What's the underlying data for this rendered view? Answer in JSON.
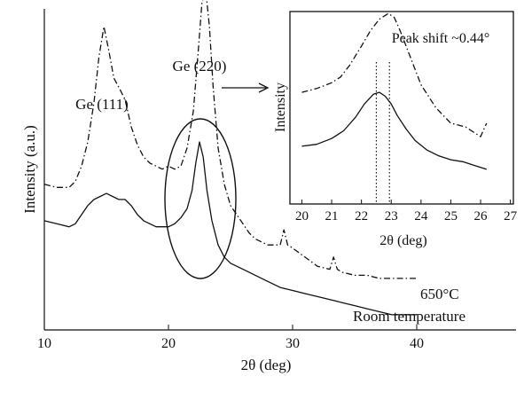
{
  "chart_data": [
    {
      "id": "main",
      "type": "line",
      "title": "",
      "xlabel": "2θ (deg)",
      "ylabel": "Intensity (a.u.)",
      "xlim": [
        10,
        48
      ],
      "ticks_x": [
        10,
        20,
        30,
        40
      ],
      "y_tick_labels": false,
      "series": [
        {
          "name": "650°C",
          "style": "dashdot",
          "x": [
            10,
            11,
            12,
            12.5,
            13,
            13.5,
            14,
            14.4,
            14.8,
            15.2,
            15.6,
            16,
            16.5,
            17,
            17.5,
            18,
            18.5,
            19,
            19.5,
            20,
            20.5,
            21,
            21.5,
            22,
            22.4,
            22.7,
            23,
            23.3,
            23.6,
            24,
            24.5,
            25,
            25.5,
            26,
            26.5,
            27,
            27.5,
            28,
            28.5,
            29,
            29.3,
            29.6,
            30,
            31,
            32,
            33,
            33.3,
            33.6,
            34,
            35,
            36,
            37,
            38,
            39,
            40
          ],
          "y": [
            0.48,
            0.47,
            0.47,
            0.49,
            0.54,
            0.62,
            0.75,
            0.9,
            1.0,
            0.92,
            0.83,
            0.8,
            0.76,
            0.67,
            0.61,
            0.57,
            0.55,
            0.54,
            0.53,
            0.54,
            0.53,
            0.54,
            0.6,
            0.72,
            0.92,
            1.08,
            1.12,
            1.0,
            0.8,
            0.6,
            0.48,
            0.41,
            0.38,
            0.35,
            0.32,
            0.3,
            0.29,
            0.28,
            0.28,
            0.28,
            0.33,
            0.28,
            0.27,
            0.24,
            0.21,
            0.2,
            0.24,
            0.2,
            0.19,
            0.18,
            0.18,
            0.17,
            0.17,
            0.17,
            0.17
          ]
        },
        {
          "name": "Room temperature",
          "style": "solid",
          "x": [
            10,
            11,
            12,
            12.5,
            13,
            13.5,
            14,
            14.5,
            15,
            15.5,
            16,
            16.5,
            17,
            17.5,
            18,
            18.5,
            19,
            19.5,
            20,
            20.5,
            21,
            21.5,
            21.9,
            22.2,
            22.5,
            22.8,
            23.1,
            23.5,
            24,
            24.5,
            25,
            26,
            27,
            28,
            29,
            30,
            31,
            32,
            33,
            34,
            35,
            36,
            37,
            38,
            39,
            40
          ],
          "y": [
            0.36,
            0.35,
            0.34,
            0.35,
            0.38,
            0.41,
            0.43,
            0.44,
            0.45,
            0.44,
            0.43,
            0.43,
            0.41,
            0.38,
            0.36,
            0.35,
            0.34,
            0.34,
            0.34,
            0.35,
            0.37,
            0.4,
            0.46,
            0.55,
            0.62,
            0.57,
            0.46,
            0.36,
            0.28,
            0.24,
            0.22,
            0.2,
            0.18,
            0.16,
            0.14,
            0.13,
            0.12,
            0.11,
            0.1,
            0.09,
            0.08,
            0.07,
            0.06,
            0.05,
            0.05,
            0.05
          ]
        }
      ],
      "annotations": [
        {
          "text": "Ge (111)",
          "x": 15
        },
        {
          "text": "Ge (220)",
          "x": 22.7
        }
      ]
    },
    {
      "id": "inset",
      "type": "line",
      "title": "Peak shift ~0.44°",
      "xlabel": "2θ (deg)",
      "ylabel": "Intensity",
      "xlim": [
        19.6,
        27.1
      ],
      "ticks_x": [
        20,
        21,
        22,
        23,
        24,
        25,
        26,
        27
      ],
      "y_tick_labels": false,
      "markers_x": [
        22.5,
        22.94
      ],
      "series": [
        {
          "name": "650°C",
          "style": "dashdot",
          "x": [
            20,
            20.5,
            21,
            21.3,
            21.6,
            22,
            22.3,
            22.6,
            22.9,
            23.1,
            23.3,
            23.6,
            24,
            24.5,
            25,
            25.5,
            26,
            26.2
          ],
          "y": [
            0.58,
            0.6,
            0.63,
            0.66,
            0.72,
            0.82,
            0.9,
            0.96,
            0.99,
            0.97,
            0.9,
            0.78,
            0.62,
            0.5,
            0.42,
            0.4,
            0.35,
            0.42
          ]
        },
        {
          "name": "Room temperature",
          "style": "solid",
          "x": [
            20,
            20.5,
            21,
            21.4,
            21.8,
            22.1,
            22.4,
            22.6,
            22.8,
            23,
            23.2,
            23.5,
            23.8,
            24.2,
            24.6,
            25,
            25.4,
            25.8,
            26.2
          ],
          "y": [
            0.3,
            0.31,
            0.34,
            0.38,
            0.45,
            0.52,
            0.57,
            0.58,
            0.56,
            0.52,
            0.46,
            0.39,
            0.33,
            0.28,
            0.25,
            0.23,
            0.22,
            0.2,
            0.18
          ]
        }
      ]
    }
  ]
}
